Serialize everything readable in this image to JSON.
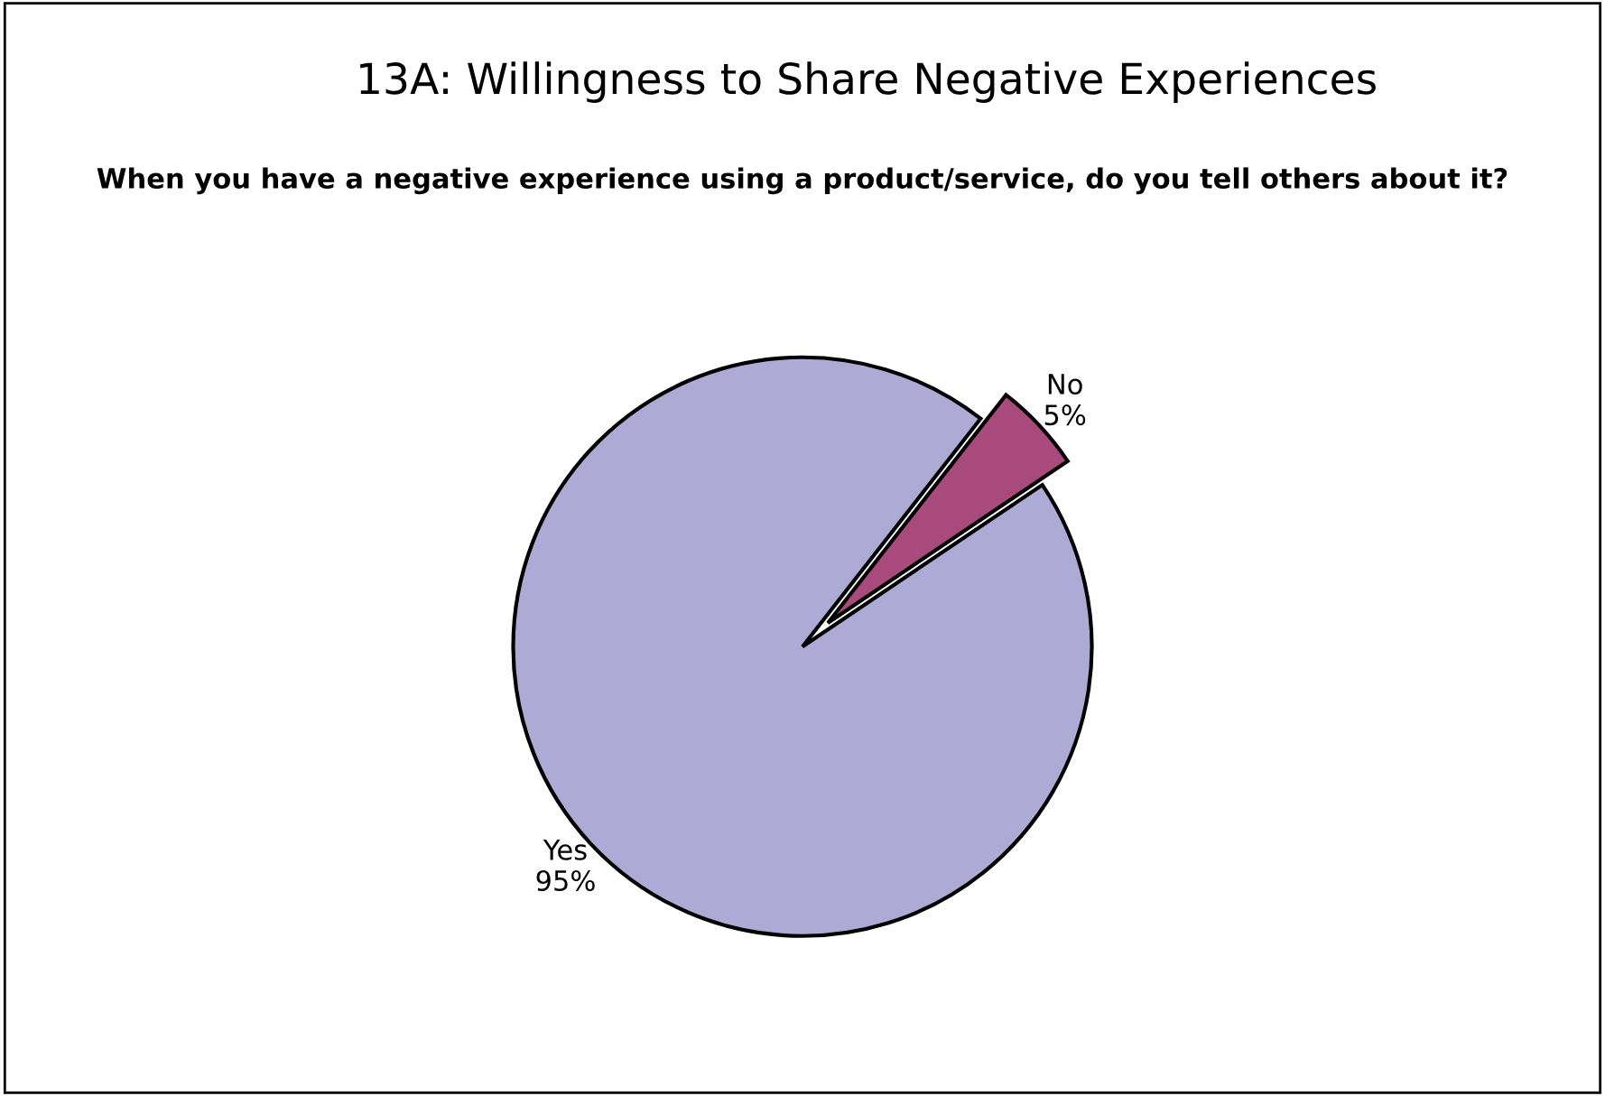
{
  "chart_data": {
    "type": "pie",
    "title": "13A: Willingness to Share Negative Experiences",
    "subtitle": "When you have a negative experience using a product/service, do you tell others about it?",
    "categories": [
      "Yes",
      "No"
    ],
    "values": [
      95,
      5
    ],
    "value_labels": [
      "95%",
      "5%"
    ],
    "colors": [
      "#aeaad6",
      "#a84a7c"
    ],
    "legend": false
  }
}
